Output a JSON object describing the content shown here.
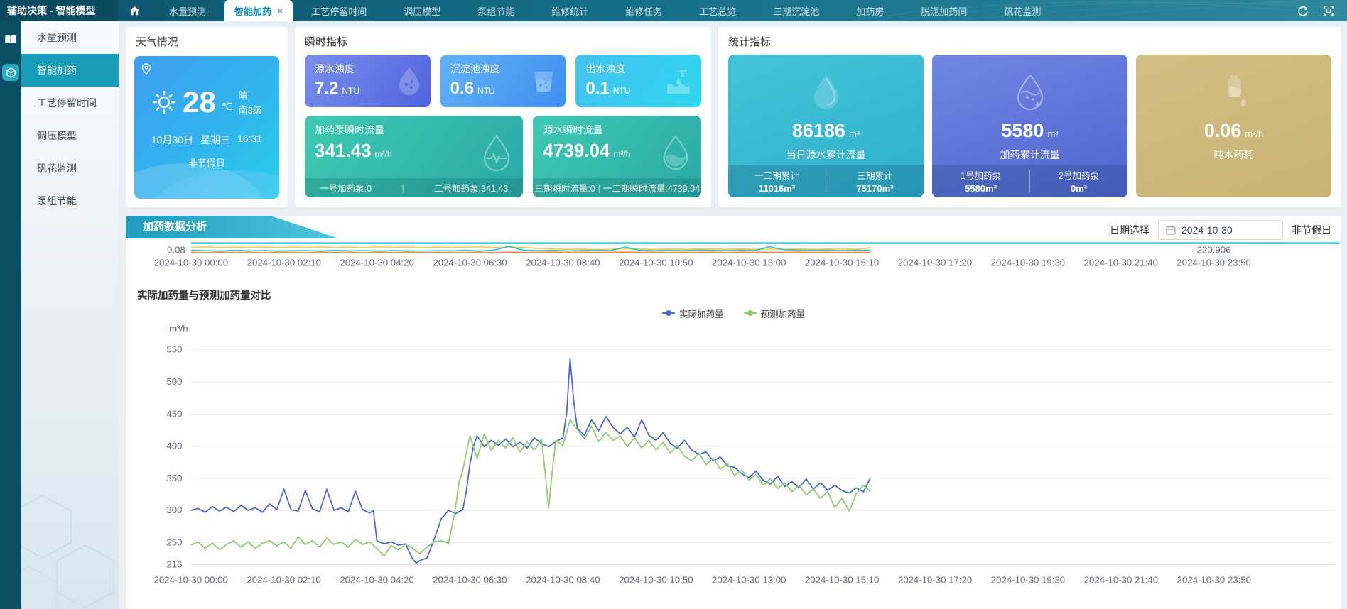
{
  "app": {
    "title": "辅助决策 - 智能模型"
  },
  "topbar": {
    "tabs": [
      {
        "label": "水量预测"
      },
      {
        "label": "智能加药",
        "close": "×"
      },
      {
        "label": "工艺停留时间"
      },
      {
        "label": "调压模型"
      },
      {
        "label": "泵组节能"
      },
      {
        "label": "维修统计"
      },
      {
        "label": "维修任务"
      },
      {
        "label": "工艺总览"
      },
      {
        "label": "三期沉淀池"
      },
      {
        "label": "加药房"
      },
      {
        "label": "脱泥加药间"
      },
      {
        "label": "矾花监测"
      }
    ]
  },
  "sidebar": {
    "items": [
      {
        "label": "水量预测"
      },
      {
        "label": "智能加药"
      },
      {
        "label": "工艺停留时间"
      },
      {
        "label": "调压模型"
      },
      {
        "label": "矾花监测"
      },
      {
        "label": "泵组节能"
      }
    ]
  },
  "weather": {
    "title": "天气情况",
    "temp": "28",
    "temp_unit": "℃",
    "condition": "晴",
    "wind": "南3级",
    "date": "10月30日",
    "weekday": "星期三",
    "time": "16:31",
    "holiday": "非节假日"
  },
  "instant": {
    "title": "瞬时指标",
    "ntu_cards": [
      {
        "label": "源水浊度",
        "value": "7.2",
        "unit": "NTU"
      },
      {
        "label": "沉淀池浊度",
        "value": "0.6",
        "unit": "NTU"
      },
      {
        "label": "出水浊度",
        "value": "0.1",
        "unit": "NTU"
      }
    ],
    "flow_cards": [
      {
        "label": "加药泵瞬时流量",
        "value": "341.43",
        "unit": "m³/h",
        "d1": "一号加药泵:0",
        "sep": "|",
        "d2": "二号加药泵:341.43"
      },
      {
        "label": "源水瞬时流量",
        "value": "4739.04",
        "unit": "m³/h",
        "d1": "三期瞬时流量:0",
        "sep": "|",
        "d2": "一二期瞬时流量:4739.04"
      }
    ]
  },
  "stats": {
    "title": "统计指标",
    "cards": [
      {
        "value": "86186",
        "unit": "m³",
        "label": "当日源水累计流量",
        "k1": "一二期累计",
        "v1": "11016m³",
        "k2": "三期累计",
        "v2": "75170m³"
      },
      {
        "value": "5580",
        "unit": "m³",
        "label": "加药累计流量",
        "k1": "1号加药泵",
        "v1": "5580m³",
        "k2": "2号加药泵",
        "v2": "0m³"
      },
      {
        "value": "0.06",
        "unit": "m³/h",
        "label": "吨水药耗"
      }
    ]
  },
  "analysis": {
    "section_title": "加药数据分析",
    "date_label": "日期选择",
    "date_value": "2024-10-30",
    "holiday": "非节假日"
  },
  "chart_data": {
    "type": "line",
    "title": "实际加药量与预测加药量对比",
    "ylabel": "m³/h",
    "ylim": [
      216,
      560
    ],
    "yticks": [
      216,
      250,
      300,
      350,
      400,
      450,
      500,
      550
    ],
    "grid": true,
    "legend_position": "top-center",
    "x_total_minutes": 1430,
    "x_labels": [
      "2024-10-30 00:00",
      "2024-10-30 02:10",
      "2024-10-30 04:20",
      "2024-10-30 06:30",
      "2024-10-30 08:40",
      "2024-10-30 10:50",
      "2024-10-30 13:00",
      "2024-10-30 15:10",
      "2024-10-30 17:20",
      "2024-10-30 19:30",
      "2024-10-30 21:40",
      "2024-10-30 23:50"
    ],
    "series": [
      {
        "name": "实际加药量",
        "color": "#4a67cf",
        "points": [
          [
            0,
            300
          ],
          [
            10,
            303
          ],
          [
            20,
            297
          ],
          [
            30,
            306
          ],
          [
            40,
            299
          ],
          [
            50,
            305
          ],
          [
            60,
            298
          ],
          [
            70,
            308
          ],
          [
            80,
            300
          ],
          [
            90,
            304
          ],
          [
            100,
            297
          ],
          [
            110,
            310
          ],
          [
            120,
            301
          ],
          [
            130,
            333
          ],
          [
            140,
            301
          ],
          [
            150,
            299
          ],
          [
            160,
            331
          ],
          [
            170,
            302
          ],
          [
            180,
            298
          ],
          [
            190,
            333
          ],
          [
            200,
            300
          ],
          [
            210,
            304
          ],
          [
            220,
            298
          ],
          [
            230,
            330
          ],
          [
            240,
            301
          ],
          [
            250,
            296
          ],
          [
            255,
            300
          ],
          [
            260,
            253
          ],
          [
            270,
            248
          ],
          [
            280,
            251
          ],
          [
            290,
            246
          ],
          [
            300,
            248
          ],
          [
            310,
            224
          ],
          [
            315,
            218
          ],
          [
            320,
            222
          ],
          [
            330,
            226
          ],
          [
            340,
            255
          ],
          [
            350,
            287
          ],
          [
            360,
            300
          ],
          [
            370,
            295
          ],
          [
            380,
            301
          ],
          [
            385,
            330
          ],
          [
            390,
            372
          ],
          [
            395,
            400
          ],
          [
            400,
            416
          ],
          [
            410,
            399
          ],
          [
            420,
            409
          ],
          [
            430,
            401
          ],
          [
            440,
            411
          ],
          [
            450,
            399
          ],
          [
            460,
            406
          ],
          [
            470,
            397
          ],
          [
            480,
            413
          ],
          [
            490,
            404
          ],
          [
            500,
            399
          ],
          [
            510,
            407
          ],
          [
            520,
            413
          ],
          [
            525,
            450
          ],
          [
            530,
            536
          ],
          [
            535,
            470
          ],
          [
            540,
            428
          ],
          [
            550,
            417
          ],
          [
            560,
            441
          ],
          [
            570,
            424
          ],
          [
            580,
            446
          ],
          [
            590,
            429
          ],
          [
            600,
            419
          ],
          [
            610,
            429
          ],
          [
            620,
            414
          ],
          [
            630,
            441
          ],
          [
            640,
            417
          ],
          [
            650,
            409
          ],
          [
            660,
            421
          ],
          [
            670,
            404
          ],
          [
            680,
            397
          ],
          [
            690,
            409
          ],
          [
            700,
            394
          ],
          [
            710,
            387
          ],
          [
            720,
            391
          ],
          [
            730,
            377
          ],
          [
            740,
            383
          ],
          [
            750,
            369
          ],
          [
            760,
            367
          ],
          [
            770,
            357
          ],
          [
            780,
            351
          ],
          [
            790,
            361
          ],
          [
            800,
            347
          ],
          [
            810,
            341
          ],
          [
            820,
            353
          ],
          [
            830,
            337
          ],
          [
            840,
            345
          ],
          [
            850,
            335
          ],
          [
            860,
            349
          ],
          [
            870,
            333
          ],
          [
            880,
            343
          ],
          [
            890,
            331
          ],
          [
            900,
            339
          ],
          [
            910,
            331
          ],
          [
            920,
            327
          ],
          [
            930,
            335
          ],
          [
            940,
            329
          ],
          [
            950,
            351
          ]
        ]
      },
      {
        "name": "预测加药量",
        "color": "#8fcb72",
        "points": [
          [
            0,
            246
          ],
          [
            10,
            251
          ],
          [
            20,
            241
          ],
          [
            30,
            249
          ],
          [
            40,
            239
          ],
          [
            50,
            247
          ],
          [
            60,
            253
          ],
          [
            70,
            243
          ],
          [
            80,
            251
          ],
          [
            90,
            241
          ],
          [
            100,
            249
          ],
          [
            110,
            253
          ],
          [
            120,
            245
          ],
          [
            130,
            251
          ],
          [
            140,
            241
          ],
          [
            150,
            259
          ],
          [
            160,
            247
          ],
          [
            170,
            253
          ],
          [
            180,
            243
          ],
          [
            190,
            257
          ],
          [
            200,
            247
          ],
          [
            210,
            251
          ],
          [
            220,
            243
          ],
          [
            230,
            255
          ],
          [
            240,
            247
          ],
          [
            250,
            251
          ],
          [
            260,
            241
          ],
          [
            270,
            229
          ],
          [
            280,
            245
          ],
          [
            290,
            239
          ],
          [
            300,
            247
          ],
          [
            310,
            241
          ],
          [
            320,
            233
          ],
          [
            330,
            243
          ],
          [
            340,
            251
          ],
          [
            350,
            253
          ],
          [
            360,
            249
          ],
          [
            365,
            275
          ],
          [
            370,
            305
          ],
          [
            375,
            345
          ],
          [
            380,
            362
          ],
          [
            385,
            390
          ],
          [
            390,
            416
          ],
          [
            400,
            381
          ],
          [
            410,
            419
          ],
          [
            420,
            394
          ],
          [
            430,
            409
          ],
          [
            440,
            397
          ],
          [
            450,
            413
          ],
          [
            460,
            391
          ],
          [
            470,
            406
          ],
          [
            480,
            394
          ],
          [
            490,
            411
          ],
          [
            495,
            360
          ],
          [
            500,
            303
          ],
          [
            505,
            360
          ],
          [
            510,
            409
          ],
          [
            520,
            401
          ],
          [
            530,
            441
          ],
          [
            540,
            426
          ],
          [
            550,
            411
          ],
          [
            560,
            431
          ],
          [
            570,
            407
          ],
          [
            580,
            421
          ],
          [
            590,
            409
          ],
          [
            600,
            416
          ],
          [
            610,
            399
          ],
          [
            620,
            413
          ],
          [
            630,
            397
          ],
          [
            640,
            409
          ],
          [
            650,
            394
          ],
          [
            660,
            406
          ],
          [
            670,
            389
          ],
          [
            680,
            401
          ],
          [
            690,
            384
          ],
          [
            700,
            377
          ],
          [
            710,
            389
          ],
          [
            720,
            371
          ],
          [
            730,
            381
          ],
          [
            740,
            364
          ],
          [
            750,
            373
          ],
          [
            760,
            354
          ],
          [
            770,
            363
          ],
          [
            780,
            347
          ],
          [
            790,
            356
          ],
          [
            800,
            339
          ],
          [
            810,
            349
          ],
          [
            820,
            334
          ],
          [
            830,
            343
          ],
          [
            840,
            329
          ],
          [
            850,
            339
          ],
          [
            860,
            324
          ],
          [
            870,
            333
          ],
          [
            880,
            319
          ],
          [
            890,
            329
          ],
          [
            900,
            304
          ],
          [
            910,
            319
          ],
          [
            920,
            299
          ],
          [
            930,
            326
          ],
          [
            940,
            339
          ],
          [
            950,
            329
          ]
        ]
      }
    ],
    "overview": {
      "min_label": "0.08",
      "max_label": "220.906",
      "x_labels_same_as_main": true,
      "series": [
        {
          "name": "overview-yellow",
          "color": "#f5cd40",
          "values": [
            0.72,
            0.78,
            0.7,
            0.75,
            0.72,
            0.76,
            0.7,
            0.74,
            0.72,
            0.77,
            0.71,
            0.75,
            0.7,
            0.78,
            0.72,
            0.74,
            0.7,
            0.76,
            0.72,
            0.75,
            0.78,
            0.7,
            0.74,
            0.72,
            0.6,
            0.55,
            0.5,
            0.52,
            0.48,
            0.5,
            0.55,
            0.52,
            0.5,
            0.54,
            0.5,
            0.52,
            0.55,
            0.5,
            0.53,
            0.5,
            0.52,
            0.5,
            0.54,
            0.5,
            0.52,
            0.55,
            0.5,
            0.68
          ]
        },
        {
          "name": "overview-cyan",
          "color": "#27c5d8",
          "values": [
            0.4,
            0.35,
            0.3,
            0.38,
            0.32,
            0.36,
            0.3,
            0.35,
            0.35,
            0.3,
            0.38,
            0.32,
            0.35,
            0.3,
            0.36,
            0.32,
            0.3,
            0.35,
            0.32,
            0.38,
            0.3,
            0.42,
            0.85,
            0.4,
            0.35,
            0.38,
            0.32,
            0.36,
            0.4,
            0.35,
            0.75,
            0.4,
            0.35,
            0.38,
            0.35,
            0.4,
            0.38,
            0.35,
            0.4,
            0.36,
            0.8,
            0.45,
            0.4,
            0.38,
            0.4,
            0.36,
            0.4,
            0.38
          ]
        },
        {
          "name": "overview-orange",
          "color": "#ff8038",
          "values": [
            0.15,
            0.12,
            0.16,
            0.13,
            0.15,
            0.12,
            0.14,
            0.15,
            0.12,
            0.16,
            0.13,
            0.15,
            0.12,
            0.15,
            0.13,
            0.16,
            0.12,
            0.15,
            0.13,
            0.14,
            0.15,
            0.12,
            0.16,
            0.13,
            0.15,
            0.18,
            0.14,
            0.16,
            0.13,
            0.15,
            0.17,
            0.14,
            0.16,
            0.13,
            0.15,
            0.14,
            0.17,
            0.13,
            0.16,
            0.14,
            0.15,
            0.13,
            0.16,
            0.14,
            0.15,
            0.13,
            0.15,
            0.14
          ]
        }
      ]
    }
  }
}
